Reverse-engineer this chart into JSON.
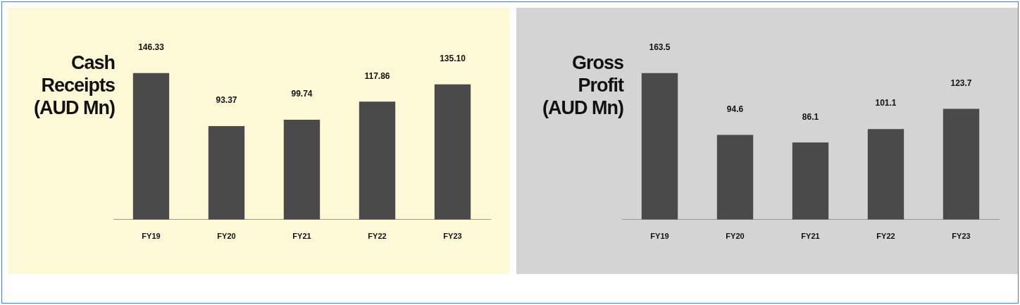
{
  "chart_data": [
    {
      "type": "bar",
      "title": "Cash Receipts (AUD Mn)",
      "categories": [
        "FY19",
        "FY20",
        "FY21",
        "FY22",
        "FY23"
      ],
      "values": [
        146.33,
        93.37,
        99.74,
        117.86,
        135.1
      ],
      "value_labels": [
        "146.33",
        "93.37",
        "99.74",
        "117.86",
        "135.10"
      ],
      "color": "#4a4a4a",
      "tick_labels": "x"
    },
    {
      "type": "bar",
      "title": "Gross Profit (AUD Mn)",
      "categories": [
        "FY19",
        "FY20",
        "FY21",
        "FY22",
        "FY23"
      ],
      "values": [
        163.5,
        94.6,
        86.1,
        101.1,
        123.7
      ],
      "value_labels": [
        "163.5",
        "94.6",
        "86.1",
        "101.1",
        "123.7"
      ],
      "color": "#4a4a4a",
      "tick_labels": "x"
    }
  ]
}
